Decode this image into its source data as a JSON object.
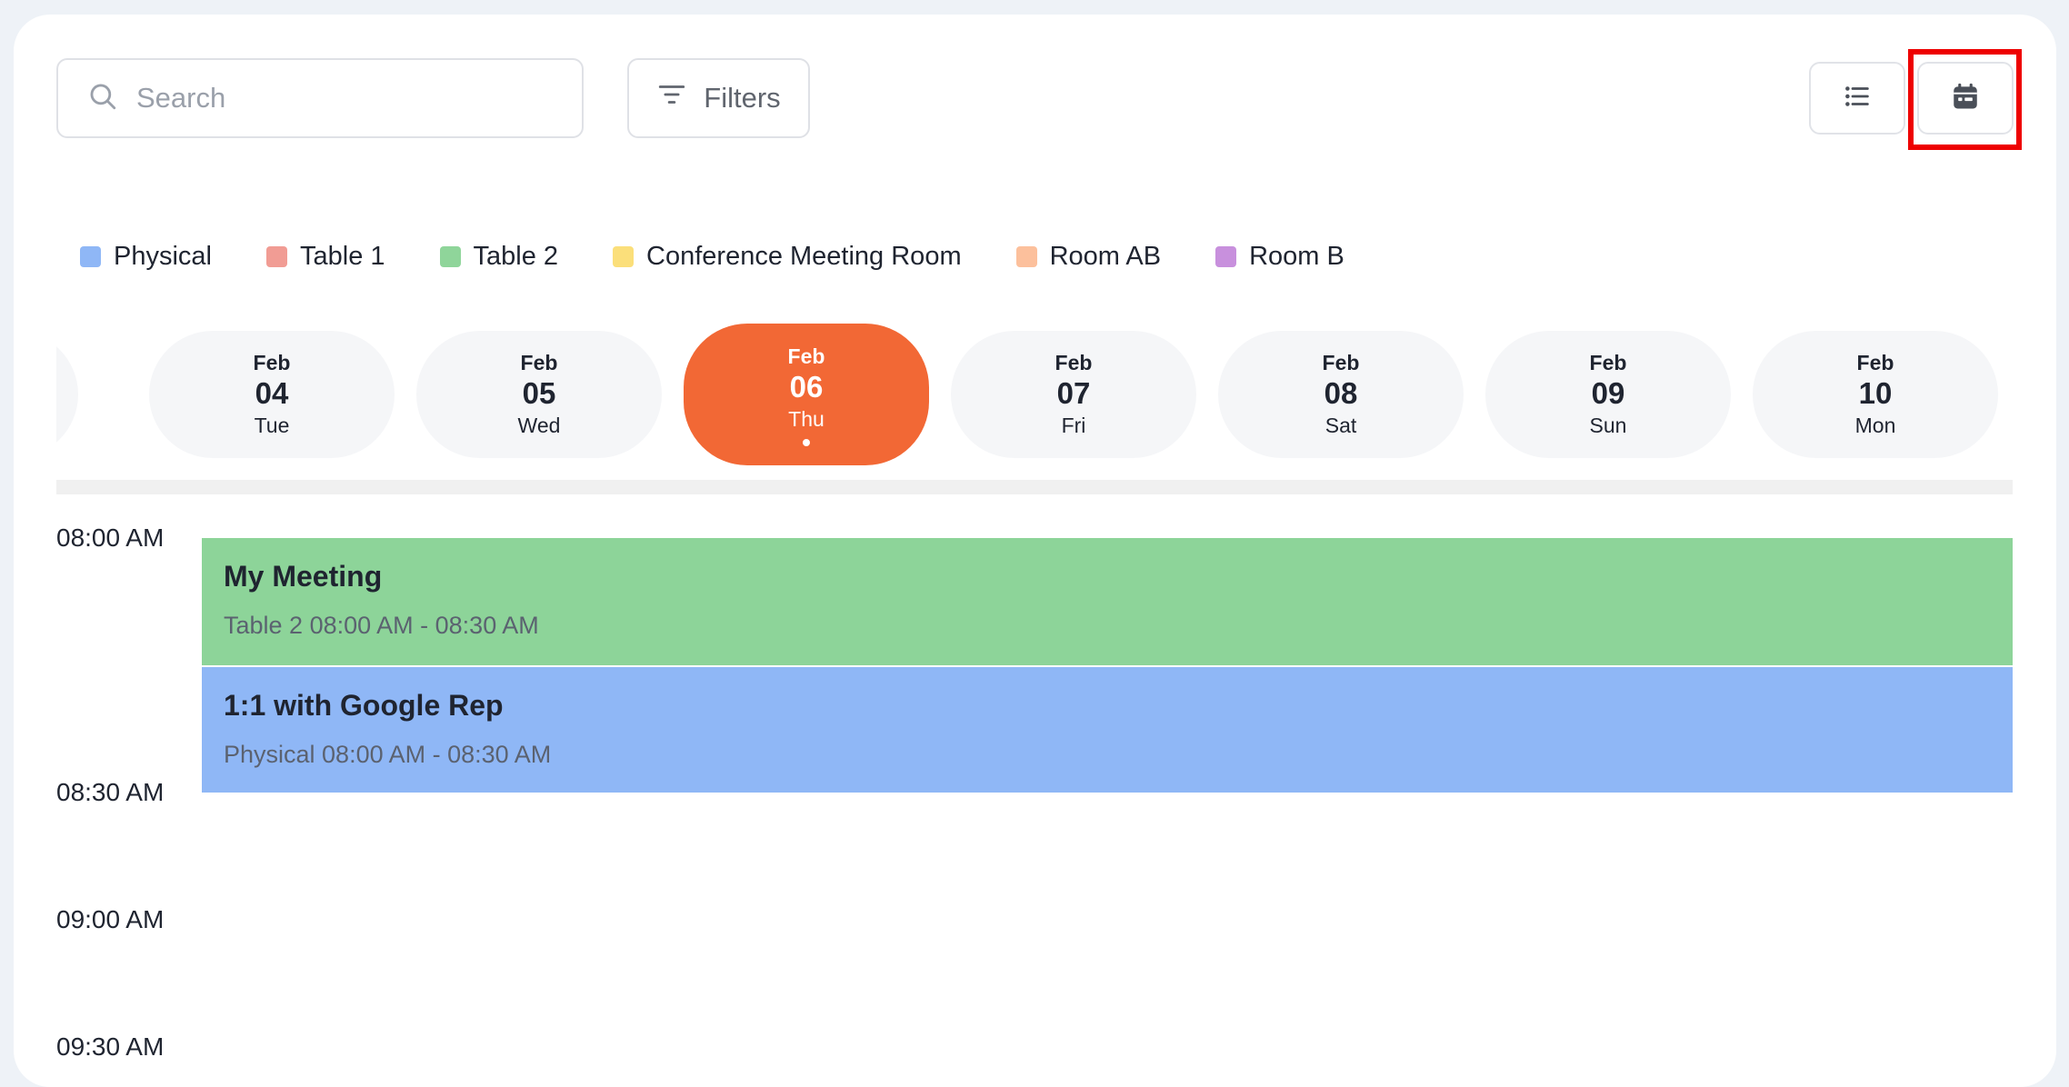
{
  "search": {
    "placeholder": "Search"
  },
  "filters": {
    "label": "Filters"
  },
  "view_toggle": {
    "list_icon": "list-icon",
    "calendar_icon": "calendar-icon",
    "active": "calendar"
  },
  "legend": [
    {
      "label": "Physical",
      "color": "#8fb7f6"
    },
    {
      "label": "Table 1",
      "color": "#f19c94"
    },
    {
      "label": "Table 2",
      "color": "#8fd59a"
    },
    {
      "label": "Conference Meeting Room",
      "color": "#fbdf7a"
    },
    {
      "label": "Room AB",
      "color": "#fcc09c"
    },
    {
      "label": "Room B",
      "color": "#c890dd"
    }
  ],
  "days": [
    {
      "month": "Feb",
      "day": "04",
      "weekday": "Tue"
    },
    {
      "month": "Feb",
      "day": "05",
      "weekday": "Wed"
    },
    {
      "month": "Feb",
      "day": "06",
      "weekday": "Thu",
      "active": true
    },
    {
      "month": "Feb",
      "day": "07",
      "weekday": "Fri"
    },
    {
      "month": "Feb",
      "day": "08",
      "weekday": "Sat"
    },
    {
      "month": "Feb",
      "day": "09",
      "weekday": "Sun"
    },
    {
      "month": "Feb",
      "day": "10",
      "weekday": "Mon"
    }
  ],
  "times": [
    "08:00 AM",
    "08:30 AM",
    "09:00 AM",
    "09:30 AM"
  ],
  "events": [
    {
      "title": "My Meeting",
      "subtitle": "Table 2 08:00 AM - 08:30 AM",
      "color": "#8dd499"
    },
    {
      "title": "1:1 with Google Rep",
      "subtitle": "Physical 08:00 AM - 08:30 AM",
      "color": "#8fb7f6"
    }
  ],
  "colors": {
    "accent": "#f26835",
    "highlight": "#ee0000"
  }
}
